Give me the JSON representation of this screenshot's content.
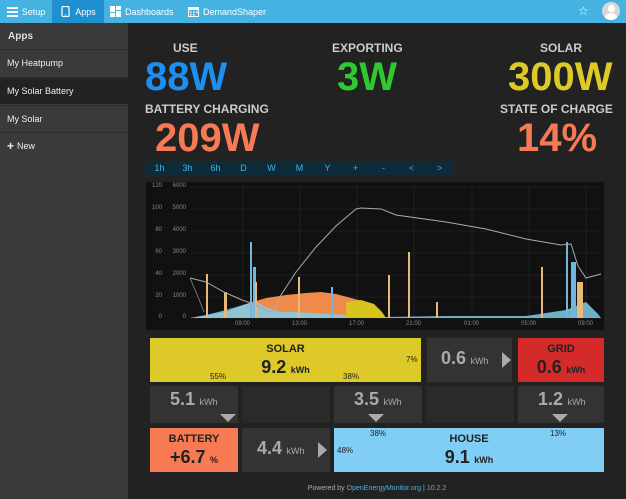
{
  "topbar": {
    "setup": "Setup",
    "apps": "Apps",
    "dashboards": "Dashboards",
    "demandshaper": "DemandShaper"
  },
  "sidebar": {
    "heading": "Apps",
    "items": [
      {
        "label": "My Heatpump"
      },
      {
        "label": "My Solar Battery"
      },
      {
        "label": "My Solar"
      },
      {
        "label": "New"
      }
    ]
  },
  "stats": {
    "use_label": "USE",
    "use_value": "88W",
    "exporting_label": "EXPORTING",
    "exporting_value": "3W",
    "solar_label": "SOLAR",
    "solar_value": "300W",
    "battery_label": "BATTERY CHARGING",
    "battery_value": "209W",
    "soc_label": "STATE OF CHARGE",
    "soc_value": "14%"
  },
  "time_buttons": [
    "1h",
    "3h",
    "6h",
    "D",
    "W",
    "M",
    "Y",
    "+",
    "-",
    "<",
    ">"
  ],
  "chart_data": {
    "type": "line",
    "y_left_ticks": [
      "120",
      "100",
      "80",
      "60",
      "40",
      "20",
      "0"
    ],
    "y_right_ticks": [
      "6000",
      "5000",
      "4000",
      "3000",
      "2000",
      "1000",
      "0"
    ],
    "x_ticks": [
      "09:00",
      "13:00",
      "17:00",
      "21:00",
      "01:00",
      "05:00",
      "09:00"
    ]
  },
  "flows": {
    "solar_label": "SOLAR",
    "solar_value": "9.2",
    "solar_unit": "kWh",
    "solar_pct_a": "55%",
    "solar_pct_b": "38%",
    "solar_pct_c": "7%",
    "export_value": "0.6",
    "export_unit": "kWh",
    "grid_label": "GRID",
    "grid_value": "0.6",
    "grid_unit": "kWh",
    "to_battery": "5.1",
    "to_battery_unit": "kWh",
    "to_house": "3.5",
    "to_house_unit": "kWh",
    "grid_to_house": "1.2",
    "grid_to_house_unit": "kWh",
    "battery_label": "BATTERY",
    "battery_value": "+6.7",
    "battery_unit": "%",
    "battery_to_house": "4.4",
    "battery_to_house_unit": "kWh",
    "house_label": "HOUSE",
    "house_value": "9.1",
    "house_unit": "kWh",
    "house_pct_a": "38%",
    "house_pct_b": "13%",
    "house_pct_c": "48%"
  },
  "footer": {
    "powered": "Powered by",
    "link": "OpenEnergyMonitor.org",
    "sep": "|",
    "version": "10.2.2"
  }
}
